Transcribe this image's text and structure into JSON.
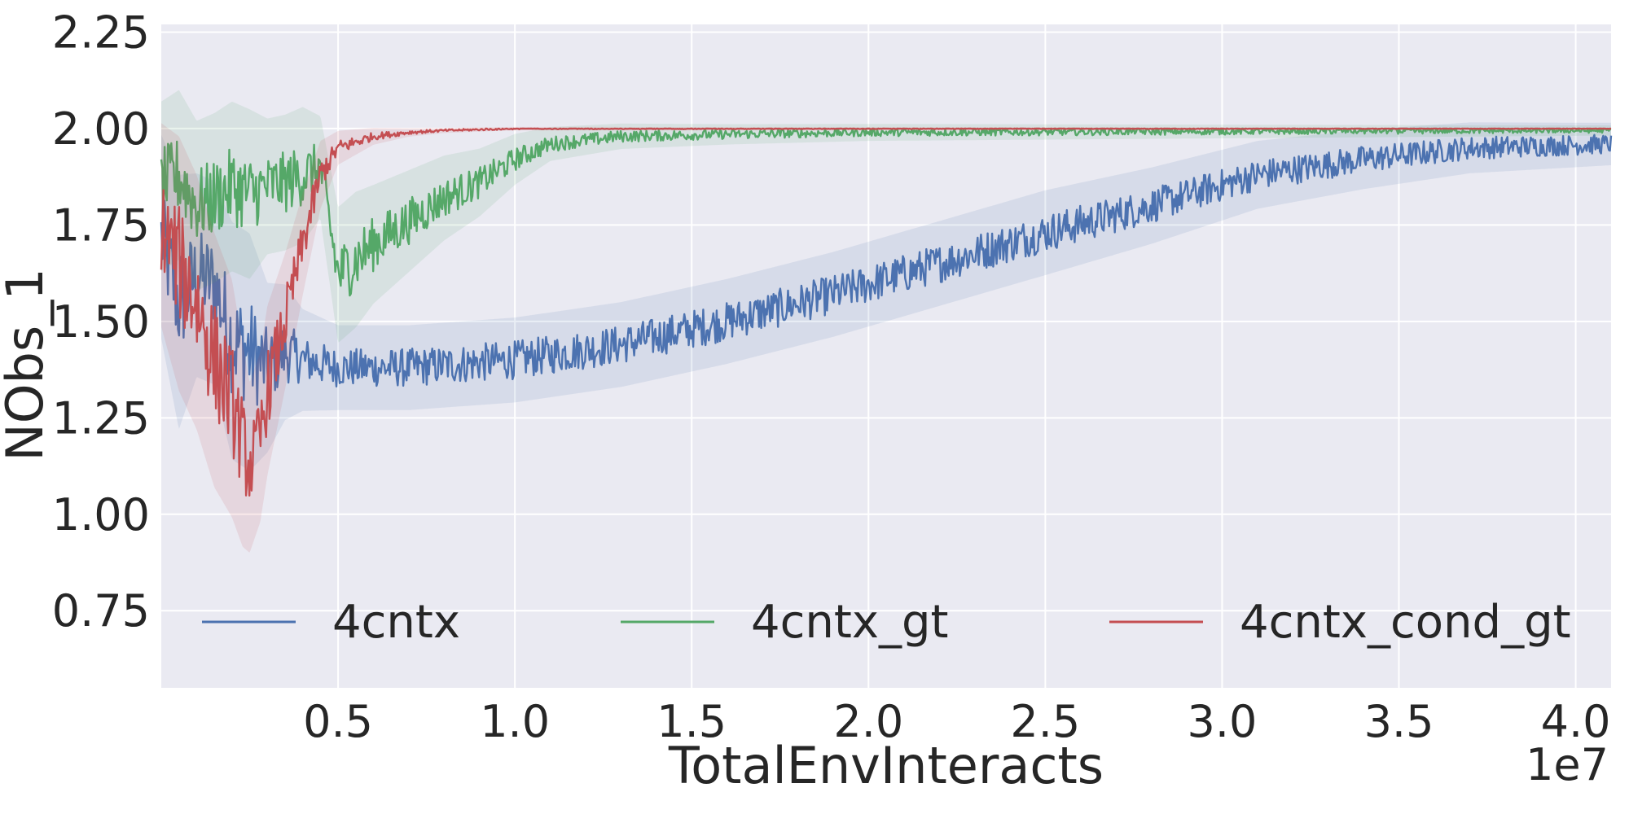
{
  "chart_data": {
    "type": "line",
    "xlabel": "TotalEnvInteracts",
    "ylabel": "NObs_1",
    "x_offset_label": "1e7",
    "xlim": [
      0,
      4.1
    ],
    "ylim": [
      0.55,
      2.27
    ],
    "x_ticks": [
      0.5,
      1.0,
      1.5,
      2.0,
      2.5,
      3.0,
      3.5,
      4.0
    ],
    "x_tick_labels": [
      "0.5",
      "1.0",
      "1.5",
      "2.0",
      "2.5",
      "3.0",
      "3.5",
      "4.0"
    ],
    "y_ticks": [
      0.75,
      1.0,
      1.25,
      1.5,
      1.75,
      2.0,
      2.25
    ],
    "y_tick_labels": [
      "0.75",
      "1.00",
      "1.25",
      "1.50",
      "1.75",
      "2.00",
      "2.25"
    ],
    "grid": true,
    "legend": {
      "placement": "lower-center",
      "columns": 3
    },
    "series": [
      {
        "name": "4cntx",
        "color": "#4c72b0",
        "x": [
          0.0,
          0.05,
          0.1,
          0.15,
          0.2,
          0.25,
          0.3,
          0.35,
          0.4,
          0.5,
          0.7,
          1.0,
          1.3,
          1.6,
          1.9,
          2.2,
          2.5,
          2.8,
          3.1,
          3.4,
          3.7,
          4.1
        ],
        "y": [
          1.72,
          1.55,
          1.62,
          1.6,
          1.45,
          1.42,
          1.38,
          1.42,
          1.4,
          1.38,
          1.38,
          1.4,
          1.44,
          1.5,
          1.57,
          1.65,
          1.73,
          1.8,
          1.88,
          1.92,
          1.95,
          1.96
        ],
        "noise": [
          0.12,
          0.15,
          0.12,
          0.12,
          0.14,
          0.14,
          0.1,
          0.08,
          0.06,
          0.05,
          0.05,
          0.05,
          0.05,
          0.05,
          0.05,
          0.05,
          0.05,
          0.045,
          0.04,
          0.035,
          0.03,
          0.025
        ]
      },
      {
        "name": "4cntx_gt",
        "color": "#55a868",
        "x": [
          0.0,
          0.05,
          0.1,
          0.15,
          0.2,
          0.25,
          0.3,
          0.35,
          0.4,
          0.45,
          0.5,
          0.55,
          0.6,
          0.7,
          0.8,
          0.9,
          1.0,
          1.1,
          1.3,
          1.6,
          2.0,
          4.1
        ],
        "y": [
          1.85,
          1.88,
          1.8,
          1.82,
          1.85,
          1.83,
          1.85,
          1.86,
          1.88,
          1.9,
          1.62,
          1.66,
          1.7,
          1.76,
          1.82,
          1.86,
          1.92,
          1.96,
          1.98,
          1.985,
          1.99,
          1.995
        ],
        "noise": [
          0.1,
          0.1,
          0.1,
          0.1,
          0.1,
          0.1,
          0.08,
          0.08,
          0.08,
          0.06,
          0.08,
          0.08,
          0.07,
          0.06,
          0.05,
          0.04,
          0.03,
          0.02,
          0.015,
          0.012,
          0.01,
          0.006
        ]
      },
      {
        "name": "4cntx_cond_gt",
        "color": "#c44e52",
        "x": [
          0.0,
          0.05,
          0.1,
          0.15,
          0.2,
          0.23,
          0.25,
          0.28,
          0.3,
          0.35,
          0.4,
          0.45,
          0.5,
          0.6,
          0.7,
          0.8,
          1.0,
          4.1
        ],
        "y": [
          1.75,
          1.65,
          1.55,
          1.4,
          1.3,
          1.18,
          1.12,
          1.2,
          1.32,
          1.5,
          1.7,
          1.88,
          1.95,
          1.98,
          1.99,
          1.995,
          2.0,
          2.0
        ],
        "noise": [
          0.12,
          0.15,
          0.15,
          0.15,
          0.14,
          0.12,
          0.1,
          0.1,
          0.1,
          0.08,
          0.06,
          0.04,
          0.02,
          0.01,
          0.005,
          0.003,
          0.002,
          0.001
        ]
      }
    ]
  }
}
